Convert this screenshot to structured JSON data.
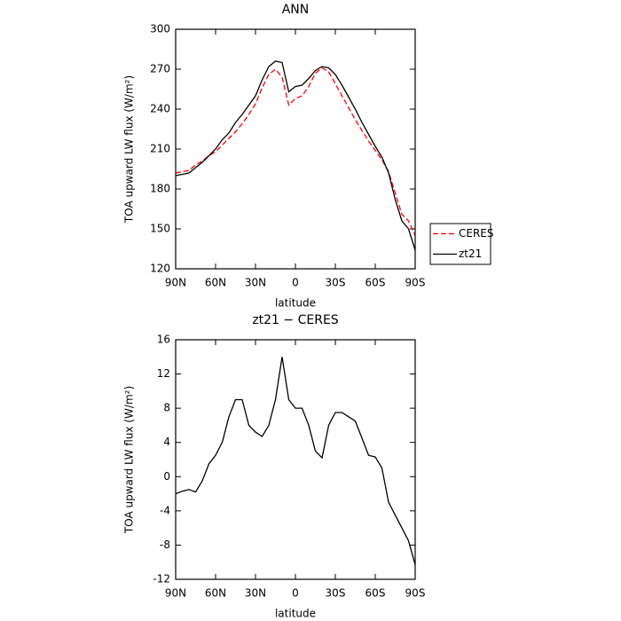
{
  "chart_data": [
    {
      "type": "line",
      "title": "ANN",
      "x_label": "latitude",
      "y_label": "TOA upward LW flux (W/m²)",
      "x": [
        90,
        85,
        80,
        75,
        70,
        65,
        60,
        55,
        50,
        45,
        40,
        35,
        30,
        25,
        20,
        15,
        10,
        5,
        0,
        -5,
        -10,
        -15,
        -20,
        -25,
        -30,
        -35,
        -40,
        -45,
        -50,
        -55,
        -60,
        -65,
        -70,
        -75,
        -80,
        -85,
        -90
      ],
      "series": [
        {
          "name": "CERES",
          "color": "#ff0000",
          "line_style": "dashed",
          "values": [
            192,
            193,
            194,
            198,
            201,
            205,
            208,
            213,
            218,
            223,
            229,
            236,
            244,
            256,
            266,
            270,
            264,
            243,
            248,
            250,
            257,
            267,
            271,
            268,
            259,
            250,
            241,
            232,
            224,
            216,
            209,
            202,
            193,
            177,
            161,
            156,
            145
          ]
        },
        {
          "name": "zt21",
          "color": "#000000",
          "line_style": "solid",
          "values": [
            190,
            191,
            192,
            196,
            200,
            205,
            210,
            217,
            222,
            230,
            236,
            243,
            250,
            262,
            272,
            276,
            275,
            253,
            257,
            258,
            263,
            269,
            272,
            271,
            266,
            258,
            249,
            240,
            230,
            221,
            212,
            204,
            192,
            172,
            156,
            150,
            134
          ]
        }
      ],
      "xlim": [
        90,
        -90
      ],
      "xticks": [
        {
          "value": 90,
          "label": "90N"
        },
        {
          "value": 60,
          "label": "60N"
        },
        {
          "value": 30,
          "label": "30N"
        },
        0,
        {
          "value": -30,
          "label": "30S"
        },
        {
          "value": -60,
          "label": "60S"
        },
        {
          "value": -90,
          "label": "90S"
        }
      ],
      "ylim": [
        120,
        300
      ],
      "yticks": [
        120,
        150,
        180,
        210,
        240,
        270,
        300
      ],
      "legend": "right"
    },
    {
      "type": "line",
      "title": "zt21 − CERES",
      "x_label": "latitude",
      "y_label": "TOA upward LW flux (W/m²)",
      "x": [
        90,
        85,
        80,
        75,
        70,
        65,
        60,
        55,
        50,
        45,
        40,
        35,
        30,
        25,
        20,
        15,
        10,
        5,
        0,
        -5,
        -10,
        -15,
        -20,
        -25,
        -30,
        -35,
        -40,
        -45,
        -50,
        -55,
        -60,
        -65,
        -70,
        -75,
        -80,
        -85,
        -90
      ],
      "series": [
        {
          "color": "#000000",
          "line_style": "solid",
          "values": [
            -2,
            -1.7,
            -1.5,
            -1.8,
            -0.5,
            1.5,
            2.5,
            4,
            7,
            9,
            9,
            6,
            5.2,
            4.7,
            6,
            9,
            14,
            9,
            8,
            8,
            6,
            3,
            2.2,
            6,
            7.5,
            7.5,
            7,
            6.5,
            4.5,
            2.5,
            2.3,
            1,
            -3,
            -4.5,
            -6,
            -7.5,
            -10.3
          ]
        }
      ],
      "xlim": [
        90,
        -90
      ],
      "xticks": [
        {
          "value": 90,
          "label": "90N"
        },
        {
          "value": 60,
          "label": "60N"
        },
        {
          "value": 30,
          "label": "30N"
        },
        0,
        {
          "value": -30,
          "label": "30S"
        },
        {
          "value": -60,
          "label": "60S"
        },
        {
          "value": -90,
          "label": "90S"
        }
      ],
      "ylim": [
        -12,
        16
      ],
      "yticks": [
        -12,
        -8,
        -4,
        0,
        4,
        8,
        12,
        16
      ]
    }
  ]
}
